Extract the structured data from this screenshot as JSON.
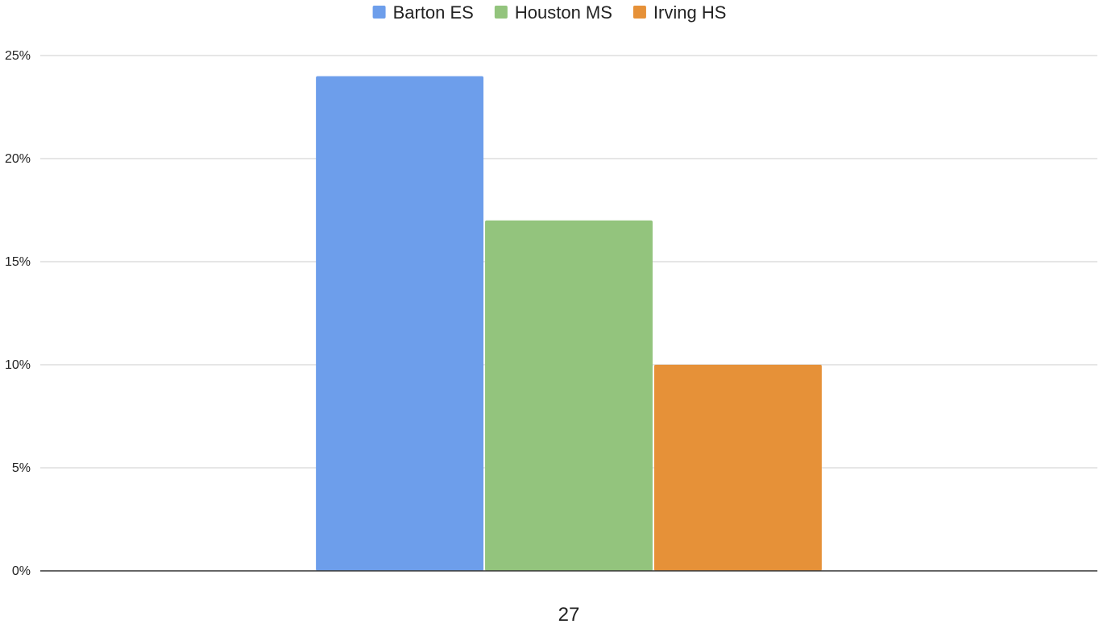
{
  "chart_data": {
    "type": "bar",
    "title": "",
    "xlabel": "",
    "ylabel": "",
    "categories": [
      "27"
    ],
    "series": [
      {
        "name": "Barton ES",
        "values": [
          24
        ],
        "color": "#6d9eeb"
      },
      {
        "name": "Houston MS",
        "values": [
          17
        ],
        "color": "#93c47d"
      },
      {
        "name": "Irving HS",
        "values": [
          10
        ],
        "color": "#e69138"
      }
    ],
    "ylim": [
      0,
      25
    ],
    "yticks": [
      0,
      5,
      10,
      15,
      20,
      25
    ],
    "ytick_format": "percent",
    "grid": true,
    "legend": "top-center"
  }
}
